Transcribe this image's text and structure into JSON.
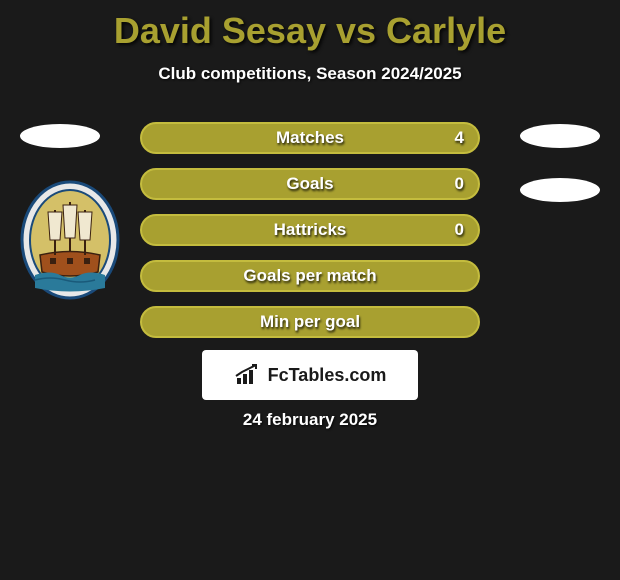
{
  "title": {
    "text": "David Sesay vs Carlyle",
    "color": "#a8a030"
  },
  "subtitle": "Club competitions, Season 2024/2025",
  "stats": [
    {
      "label": "Matches",
      "right_value": "4",
      "bg": "#a8a030",
      "border": "#c4bc3e",
      "show_right": true
    },
    {
      "label": "Goals",
      "right_value": "0",
      "bg": "#a8a030",
      "border": "#c4bc3e",
      "show_right": true
    },
    {
      "label": "Hattricks",
      "right_value": "0",
      "bg": "#a8a030",
      "border": "#c4bc3e",
      "show_right": true
    },
    {
      "label": "Goals per match",
      "right_value": "",
      "bg": "#a8a030",
      "border": "#c4bc3e",
      "show_right": false
    },
    {
      "label": "Min per goal",
      "right_value": "",
      "bg": "#a8a030",
      "border": "#c4bc3e",
      "show_right": false
    }
  ],
  "site": {
    "name": "FcTables.com",
    "icon_color": "#1a1a1a"
  },
  "date": "24 february 2025",
  "crest": {
    "ring_color": "#e8e8e8",
    "ring_border": "#1a4a7a",
    "inner_bg": "#d4c068",
    "ship_hull": "#a0501c",
    "water": "#2a7a9a"
  }
}
